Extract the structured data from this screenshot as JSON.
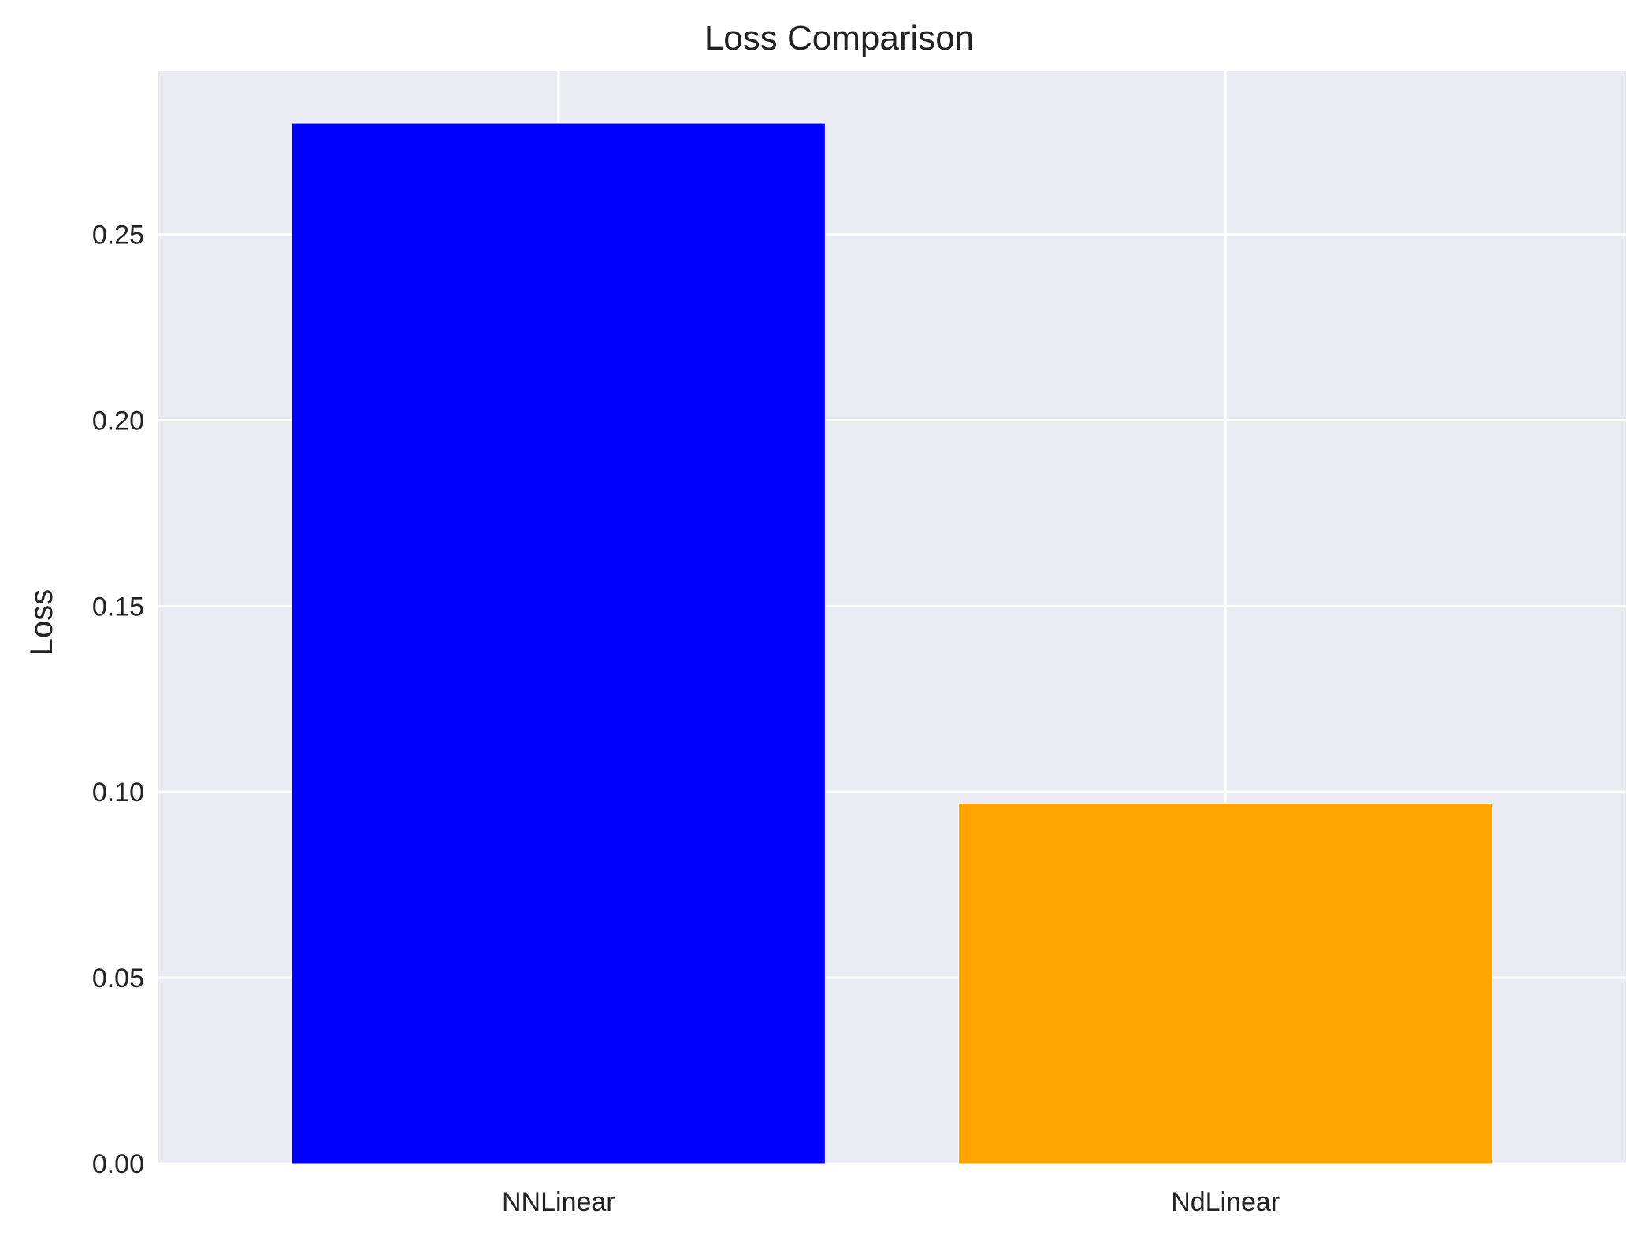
{
  "chart_data": {
    "type": "bar",
    "title": "Loss Comparison",
    "xlabel": "",
    "ylabel": "Loss",
    "categories": [
      "NNLinear",
      "NdLinear"
    ],
    "values": [
      0.28,
      0.097
    ],
    "colors": [
      "#0000ff",
      "#ffa500"
    ],
    "ylim": [
      0,
      0.294
    ],
    "yticks": [
      0.0,
      0.05,
      0.1,
      0.15,
      0.2,
      0.25
    ],
    "ytick_labels": [
      "0.00",
      "0.05",
      "0.10",
      "0.15",
      "0.20",
      "0.25"
    ],
    "grid": true,
    "background_color": "#eaeaf2",
    "grid_color": "#ffffff"
  }
}
